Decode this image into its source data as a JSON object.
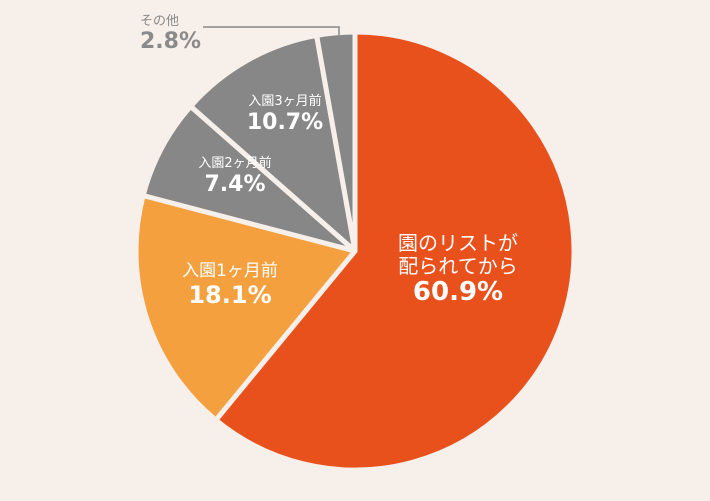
{
  "chart_data": {
    "type": "pie",
    "title": "",
    "start_angle_deg": 0,
    "direction": "clockwise",
    "slices": [
      {
        "label": "園のリストが配られてから",
        "label_lines": [
          "園のリストが",
          "配られてから"
        ],
        "value": 60.9,
        "display": "60.9%",
        "color": "#e8501c"
      },
      {
        "label": "入園1ヶ月前",
        "value": 18.1,
        "display": "18.1%",
        "color": "#f4a03f"
      },
      {
        "label": "入園2ヶ月前",
        "value": 7.4,
        "display": "7.4%",
        "color": "#878787"
      },
      {
        "label": "入園3ヶ月前",
        "value": 10.7,
        "display": "10.7%",
        "color": "#878787"
      },
      {
        "label": "その他",
        "value": 2.8,
        "display": "2.8%",
        "color": "#878787"
      }
    ]
  },
  "background": "#f7efea",
  "separator_color": "#f7efea"
}
